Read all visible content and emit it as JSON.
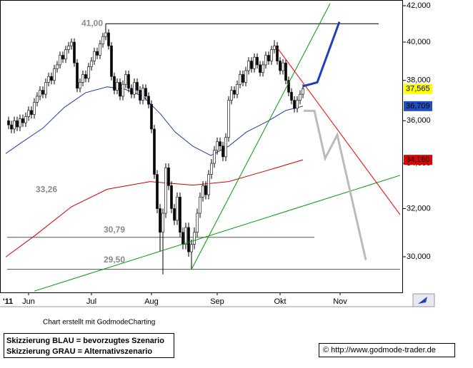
{
  "chart_data": {
    "type": "candlestick",
    "log_scale": true,
    "xlim": [
      -10,
      130.75
    ],
    "ylim": [
      28600,
      42322
    ],
    "yticks": [
      {
        "value": 30000,
        "label": "30,000"
      },
      {
        "value": 32000,
        "label": "32,000"
      },
      {
        "value": 34000,
        "label": "34,000"
      },
      {
        "value": 36000,
        "label": "36,000"
      },
      {
        "value": 38000,
        "label": "38,000"
      },
      {
        "value": 40000,
        "label": "40,000"
      },
      {
        "value": 42000,
        "label": "42,000"
      }
    ],
    "xticks": [
      {
        "value": 0,
        "label": "Jun"
      },
      {
        "value": 22,
        "label": "Jul"
      },
      {
        "value": 43,
        "label": "Aug"
      },
      {
        "value": 66,
        "label": "Sep"
      },
      {
        "value": 88,
        "label": "Okt"
      },
      {
        "value": 109,
        "label": "Nov"
      }
    ],
    "year_label": "'11",
    "x": [
      -7,
      -6,
      -5,
      -4,
      -3,
      -2,
      -1,
      0,
      1,
      2,
      3,
      4,
      5,
      6,
      7,
      8,
      9,
      10,
      11,
      12,
      13,
      14,
      15,
      16,
      17,
      18,
      19,
      20,
      21,
      22,
      23,
      24,
      25,
      26,
      27,
      28,
      29,
      30,
      31,
      32,
      33,
      34,
      35,
      36,
      37,
      38,
      39,
      40,
      41,
      42,
      43,
      44,
      45,
      46,
      47,
      48,
      49,
      50,
      51,
      52,
      53,
      54,
      55,
      56,
      57,
      58,
      59,
      60,
      61,
      62,
      63,
      64,
      65,
      66,
      67,
      68,
      69,
      70,
      71,
      72,
      73,
      74,
      75,
      76,
      77,
      78,
      79,
      80,
      81,
      82,
      83,
      84,
      85,
      86,
      87,
      88,
      89,
      90,
      91,
      92,
      93,
      94,
      95,
      96
    ],
    "ohlc": [
      [
        36000,
        36200,
        35600,
        35800
      ],
      [
        35800,
        36000,
        35400,
        35600
      ],
      [
        35600,
        36200,
        35400,
        36000
      ],
      [
        36000,
        36200,
        35500,
        35700
      ],
      [
        35700,
        36300,
        35500,
        36100
      ],
      [
        36100,
        36300,
        35700,
        35900
      ],
      [
        35900,
        36400,
        35700,
        36200
      ],
      [
        36200,
        36700,
        36000,
        36500
      ],
      [
        36500,
        36700,
        36100,
        36300
      ],
      [
        36300,
        37100,
        36100,
        36900
      ],
      [
        36900,
        37400,
        36700,
        37200
      ],
      [
        37200,
        37700,
        37000,
        37500
      ],
      [
        37500,
        37700,
        37100,
        37300
      ],
      [
        37300,
        38100,
        37100,
        37900
      ],
      [
        37900,
        38400,
        37700,
        38200
      ],
      [
        38200,
        38400,
        37800,
        38000
      ],
      [
        38000,
        38800,
        37800,
        38600
      ],
      [
        38600,
        39000,
        38400,
        38800
      ],
      [
        38800,
        39500,
        38600,
        39300
      ],
      [
        39300,
        39500,
        38900,
        39100
      ],
      [
        39100,
        39800,
        38900,
        39600
      ],
      [
        39600,
        40000,
        39400,
        39800
      ],
      [
        39800,
        40200,
        39600,
        40000
      ],
      [
        40000,
        40200,
        38700,
        38900
      ],
      [
        38900,
        39100,
        37400,
        37600
      ],
      [
        37600,
        38100,
        37400,
        37900
      ],
      [
        37900,
        38500,
        37700,
        38300
      ],
      [
        38300,
        38500,
        37900,
        38100
      ],
      [
        38100,
        38900,
        37900,
        38700
      ],
      [
        38700,
        39200,
        38500,
        39000
      ],
      [
        39000,
        39700,
        38800,
        39500
      ],
      [
        39500,
        39700,
        39100,
        39300
      ],
      [
        39300,
        40100,
        39100,
        39900
      ],
      [
        39900,
        40500,
        39700,
        40300
      ],
      [
        40300,
        41000,
        40100,
        40500
      ],
      [
        40500,
        40700,
        39600,
        39800
      ],
      [
        39800,
        40000,
        38000,
        38200
      ],
      [
        38200,
        38400,
        37300,
        37500
      ],
      [
        37500,
        38100,
        37300,
        37900
      ],
      [
        37900,
        38100,
        37000,
        37200
      ],
      [
        37200,
        38000,
        37000,
        37800
      ],
      [
        37800,
        38500,
        37600,
        38300
      ],
      [
        38300,
        38500,
        37400,
        37600
      ],
      [
        37600,
        37800,
        37100,
        37300
      ],
      [
        37300,
        38100,
        37100,
        37900
      ],
      [
        37900,
        38100,
        37300,
        37500
      ],
      [
        37500,
        37700,
        36800,
        37000
      ],
      [
        37000,
        37800,
        36800,
        37600
      ],
      [
        37600,
        37800,
        37000,
        37200
      ],
      [
        37200,
        37400,
        36600,
        36800
      ],
      [
        36800,
        37000,
        35400,
        35600
      ],
      [
        35600,
        35800,
        33300,
        33500
      ],
      [
        33500,
        33700,
        31800,
        32000
      ],
      [
        32000,
        32200,
        30200,
        31000
      ],
      [
        31000,
        32000,
        29300,
        31800
      ],
      [
        31800,
        34000,
        31600,
        33800
      ],
      [
        33800,
        34000,
        32800,
        33000
      ],
      [
        33000,
        33200,
        31800,
        32000
      ],
      [
        32000,
        32200,
        31300,
        31500
      ],
      [
        31500,
        32700,
        31300,
        32500
      ],
      [
        32500,
        32700,
        30800,
        31000
      ],
      [
        31000,
        31200,
        30300,
        30500
      ],
      [
        30500,
        31400,
        30300,
        31200
      ],
      [
        31200,
        31400,
        30000,
        30200
      ],
      [
        30200,
        30700,
        29500,
        30500
      ],
      [
        30500,
        31200,
        30300,
        31000
      ],
      [
        31000,
        32000,
        30800,
        31800
      ],
      [
        31800,
        32700,
        31600,
        32500
      ],
      [
        32500,
        33200,
        32300,
        33000
      ],
      [
        33000,
        33200,
        32400,
        32600
      ],
      [
        32600,
        33700,
        32400,
        33500
      ],
      [
        33500,
        34200,
        33300,
        34000
      ],
      [
        34000,
        34800,
        33800,
        34600
      ],
      [
        34600,
        35200,
        34400,
        35000
      ],
      [
        35000,
        35200,
        34600,
        34800
      ],
      [
        34800,
        35000,
        34100,
        34300
      ],
      [
        34300,
        35400,
        34100,
        35200
      ],
      [
        35200,
        37200,
        35000,
        37000
      ],
      [
        37000,
        37700,
        36800,
        37500
      ],
      [
        37500,
        37700,
        37100,
        37300
      ],
      [
        37300,
        38000,
        37100,
        37800
      ],
      [
        37800,
        38500,
        37600,
        38300
      ],
      [
        38300,
        38500,
        37700,
        37900
      ],
      [
        37900,
        38700,
        37700,
        38500
      ],
      [
        38500,
        39200,
        38300,
        39000
      ],
      [
        39000,
        39200,
        38400,
        38600
      ],
      [
        38600,
        39400,
        38400,
        39200
      ],
      [
        39200,
        39400,
        38600,
        38800
      ],
      [
        38800,
        39000,
        38200,
        38400
      ],
      [
        38400,
        39000,
        38200,
        38800
      ],
      [
        38800,
        39500,
        38600,
        39300
      ],
      [
        39300,
        39500,
        38800,
        39000
      ],
      [
        39000,
        39800,
        38800,
        39600
      ],
      [
        39600,
        40100,
        39400,
        39800
      ],
      [
        39800,
        40000,
        38800,
        39000
      ],
      [
        39000,
        39200,
        38300,
        38500
      ],
      [
        38500,
        39100,
        38300,
        38900
      ],
      [
        38900,
        39100,
        37800,
        38000
      ],
      [
        38000,
        38200,
        37200,
        37400
      ],
      [
        37400,
        37600,
        36800,
        37000
      ],
      [
        37000,
        37200,
        36400,
        36600
      ],
      [
        36600,
        37200,
        36400,
        37000
      ],
      [
        37000,
        37500,
        36800,
        37300
      ],
      [
        37300,
        37800,
        37100,
        37565
      ]
    ],
    "lines": [
      {
        "color": "#1f3fa0",
        "width": 1,
        "x": [
          -8,
          -2.5,
          5,
          12.5,
          20,
          27.5,
          33.75,
          40,
          46.25,
          51.25,
          57.5,
          63.75,
          70,
          76.25,
          83.75,
          90,
          96
        ],
        "y": [
          34450,
          34960,
          35640,
          36650,
          37380,
          37670,
          37550,
          37200,
          36310,
          35460,
          34790,
          34360,
          34790,
          35460,
          35980,
          36500,
          36709
        ]
      },
      {
        "color": "#cc0000",
        "width": 1,
        "x": [
          -8,
          2.5,
          15,
          27.5,
          42.5,
          57.5,
          70,
          82.5,
          96
        ],
        "y": [
          29990,
          30890,
          32080,
          32840,
          33180,
          33020,
          33180,
          33640,
          34160
        ]
      },
      {
        "color": "#009900",
        "width": 1,
        "x": [
          57,
          105.5
        ],
        "y": [
          29500,
          42120
        ]
      },
      {
        "color": "#009900",
        "width": 1,
        "x": [
          2,
          130
        ],
        "y": [
          28650,
          33460
        ]
      },
      {
        "color": "#ee0000",
        "width": 1,
        "x": [
          87,
          130
        ],
        "y": [
          39700,
          31740
        ]
      },
      {
        "color": "#1f3fc0",
        "width": 3,
        "x": [
          96,
          101,
          108.75
        ],
        "y": [
          37700,
          37900,
          41100
        ]
      },
      {
        "color": "#bbbbbb",
        "width": 3,
        "x": [
          96.25,
          100,
          103.75,
          108,
          118
        ],
        "y": [
          36480,
          36480,
          34230,
          35320,
          29870
        ]
      }
    ],
    "levels": [
      {
        "label": "41,00",
        "value": 41000,
        "x": [
          27,
          122.5
        ]
      },
      {
        "label": "30,79",
        "value": 30790,
        "x": [
          -7.5,
          100
        ]
      },
      {
        "label": "29,50",
        "value": 29500,
        "x": [
          -7.5,
          130
        ]
      }
    ],
    "annotations": [
      {
        "label": "33,26",
        "value": 33260
      }
    ],
    "last_values": [
      {
        "value": 37565,
        "label": "37,565",
        "color": "#ffff00",
        "text_color": "#000000"
      },
      {
        "value": 36709,
        "label": "36,709",
        "color": "#2050c0",
        "text_color": "#ffffff"
      },
      {
        "value": 34160,
        "label": "34,160",
        "color": "#e00000",
        "text_color": "#ffffff"
      }
    ],
    "credit": "Chart erstellt mit GodmodeCharting",
    "legend_lines": [
      "Skizzierung BLAU = bevorzugtes Szenario",
      "Skizzierung GRAU = Alternativszenario"
    ],
    "source": "© http://www.godmode-trader.de"
  }
}
